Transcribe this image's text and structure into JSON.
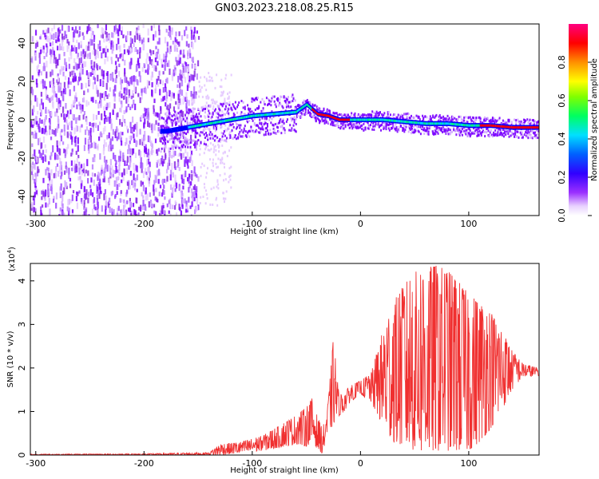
{
  "chart_data": [
    {
      "type": "heatmap",
      "title": "GN03.2023.218.08.25.R15",
      "xlabel": "Height of straight line (km)",
      "ylabel": "Frequency (Hz)",
      "xlim": [
        -305,
        165
      ],
      "ylim": [
        -50,
        50
      ],
      "xticks": [
        -300,
        -200,
        -100,
        0,
        100
      ],
      "yticks": [
        -40,
        -20,
        0,
        20,
        40
      ],
      "colorbar": {
        "label": "Normalized spectral amplitude",
        "range": [
          0.0,
          1.0
        ],
        "ticks": [
          "0.0",
          "0.2",
          "0.4",
          "0.6",
          "0.8"
        ],
        "colormap": [
          "#ffffff",
          "#d9b3ff",
          "#7a00ff",
          "#0000ff",
          "#00d0ff",
          "#00ff40",
          "#ffff00",
          "#ff8000",
          "#ff0000",
          "#ff0080"
        ]
      },
      "ridge": {
        "x": [
          -180,
          -160,
          -140,
          -120,
          -100,
          -80,
          -60,
          -50,
          -40,
          -30,
          -20,
          -10,
          0,
          20,
          40,
          60,
          80,
          100,
          120,
          140,
          160
        ],
        "frequency": [
          -6,
          -4,
          -2,
          0,
          2,
          3,
          4,
          8,
          3,
          2,
          0,
          0,
          0,
          0,
          -1,
          -2,
          -2,
          -3,
          -3,
          -4,
          -4
        ]
      }
    },
    {
      "type": "line",
      "xlabel": "Height of straight line (km)",
      "ylabel": "SNR (10 * v/v)",
      "scale_label": "(x10",
      "scale_exp": "4",
      "scale_close": ")",
      "xlim": [
        -305,
        165
      ],
      "ylim": [
        0,
        4.4
      ],
      "xticks": [
        -300,
        -200,
        -100,
        0,
        100
      ],
      "yticks": [
        0,
        1,
        2,
        3,
        4
      ],
      "color": "#f03030",
      "envelope": {
        "x": [
          -305,
          -200,
          -140,
          -130,
          -110,
          -90,
          -80,
          -70,
          -60,
          -50,
          -45,
          -40,
          -35,
          -30,
          -25,
          -20,
          -15,
          -10,
          0,
          10,
          20,
          30,
          40,
          50,
          60,
          70,
          80,
          90,
          100,
          110,
          120,
          130,
          140,
          150,
          165
        ],
        "max": [
          0.02,
          0.03,
          0.06,
          0.25,
          0.3,
          0.45,
          0.6,
          0.75,
          0.9,
          1.1,
          1.3,
          0.9,
          0.6,
          1.2,
          2.7,
          1.4,
          1.4,
          1.6,
          1.7,
          1.9,
          2.8,
          3.5,
          3.9,
          4.2,
          4.3,
          4.35,
          4.25,
          4.0,
          3.7,
          3.5,
          3.3,
          2.9,
          2.4,
          2.1,
          2.0
        ],
        "min": [
          0.0,
          0.0,
          0.0,
          0.0,
          0.05,
          0.1,
          0.15,
          0.2,
          0.25,
          0.2,
          0.3,
          0.15,
          0.02,
          0.5,
          0.7,
          0.9,
          1.0,
          1.2,
          1.4,
          1.2,
          0.7,
          0.3,
          0.2,
          0.1,
          0.05,
          0.1,
          0.1,
          0.1,
          0.1,
          0.3,
          0.6,
          1.0,
          1.5,
          1.8,
          1.8
        ]
      }
    }
  ]
}
